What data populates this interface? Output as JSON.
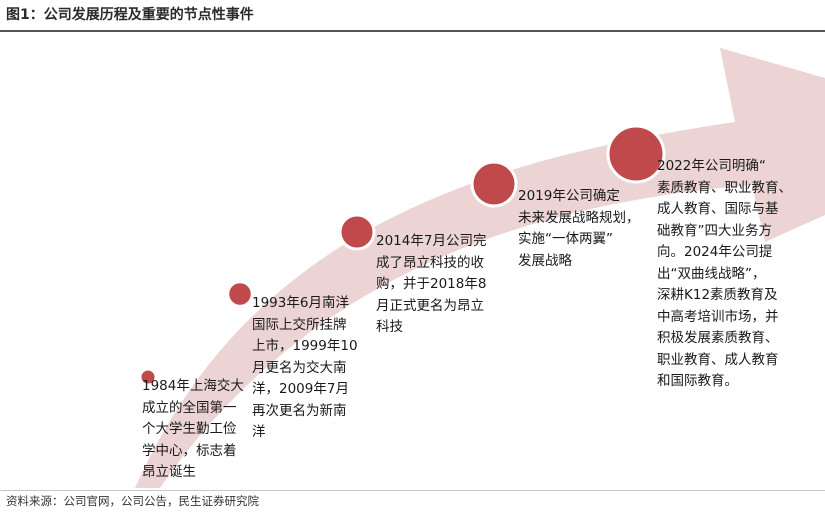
{
  "title": "图1：公司发展历程及重要的节点性事件",
  "colors": {
    "arrow_fill": "#ecd3d4",
    "node_fill": "#c0494b",
    "node_stroke": "#ffffff",
    "rule": "#555555"
  },
  "milestones": [
    {
      "text": "1984年上海交大\n成立的全国第一\n个大学生勤工俭\n学中心，标志着\n昂立诞生"
    },
    {
      "text": "1993年6月南洋\n国际上交所挂牌\n上市，1999年10\n月更名为交大南\n洋，2009年7月\n再次更名为新南\n洋"
    },
    {
      "text": "2014年7月公司完\n成了昂立科技的收\n购，并于2018年8\n月正式更名为昂立\n科技"
    },
    {
      "text": "2019年公司确定\n未来发展战略规划，\n实施“一体两翼”\n发展战略"
    },
    {
      "text": "2022年公司明确“\n素质教育、职业教育、\n成人教育、国际与基\n础教育”四大业务方\n向。2024年公司提\n出“双曲线战略”，\n深耕K12素质教育及\n中高考培训市场，并\n积极发展素质教育、\n职业教育、成人教育\n和国际教育。"
    }
  ],
  "source": "资料来源：公司官网，公司公告，民生证券研究院"
}
